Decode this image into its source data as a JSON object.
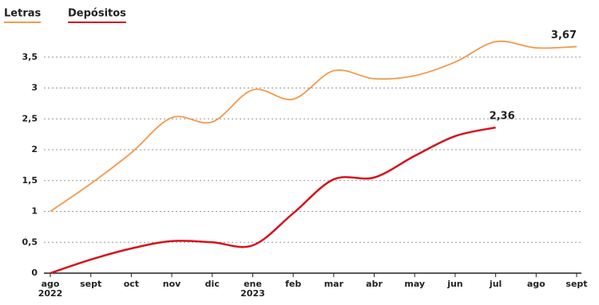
{
  "chart_data": {
    "type": "line",
    "categories": [
      "ago 2022",
      "sept",
      "oct",
      "nov",
      "dic",
      "ene 2023",
      "feb",
      "mar",
      "abr",
      "may",
      "jun",
      "jul",
      "ago",
      "sept"
    ],
    "series": [
      {
        "name": "Letras",
        "color": "#f39a4a",
        "values": [
          1.0,
          1.45,
          1.95,
          2.52,
          2.45,
          2.97,
          2.82,
          3.28,
          3.15,
          3.2,
          3.42,
          3.75,
          3.65,
          3.67
        ],
        "value_labels": [
          null,
          null,
          null,
          null,
          null,
          null,
          null,
          null,
          null,
          null,
          null,
          null,
          null,
          "3,67"
        ]
      },
      {
        "name": "Depósitos",
        "color": "#d6131b",
        "values": [
          0,
          0.22,
          0.4,
          0.52,
          0.5,
          0.45,
          0.97,
          1.52,
          1.55,
          1.9,
          2.22,
          2.36,
          null,
          null
        ],
        "value_labels": [
          null,
          null,
          null,
          null,
          null,
          null,
          null,
          null,
          null,
          null,
          null,
          "2,36",
          null,
          null
        ]
      }
    ],
    "ylim": [
      0,
      4
    ],
    "yticks": [
      0,
      {
        "value": 0.5,
        "label": "0,5"
      },
      1,
      {
        "value": 1.5,
        "label": "1,5"
      },
      2,
      {
        "value": 2.5,
        "label": "2,5"
      },
      3,
      {
        "value": 3.5,
        "label": "3,5"
      }
    ],
    "grid": true
  }
}
